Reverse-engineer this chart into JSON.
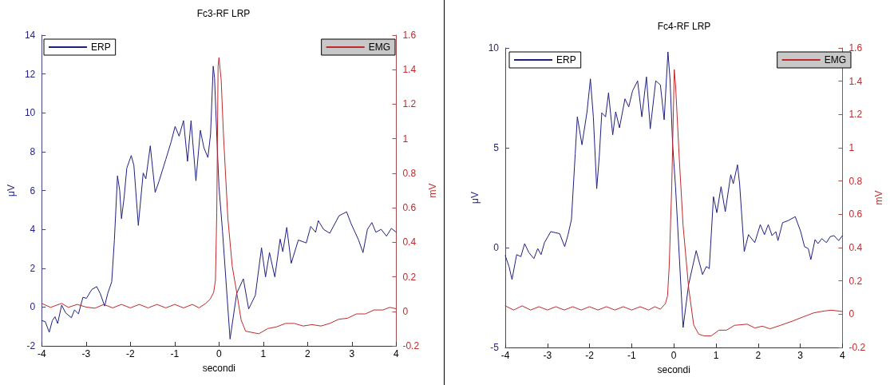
{
  "chart_data": [
    {
      "type": "line",
      "title": "Fc3-RF LRP",
      "xlabel": "secondi",
      "ylabel": "μV",
      "y2label": "mV",
      "legend": "top",
      "grid": false,
      "marker": "none",
      "line_style": "solid",
      "xlim": [
        -4,
        4
      ],
      "xticks": [
        -4,
        -3,
        -2,
        -1,
        0,
        1,
        2,
        3,
        4
      ],
      "ylim": [
        -2,
        14
      ],
      "yticks": [
        -2,
        0,
        2,
        4,
        6,
        8,
        10,
        12,
        14
      ],
      "y2lim": [
        -0.2,
        1.6
      ],
      "y2ticks": [
        -0.2,
        0,
        0.2,
        0.4,
        0.6,
        0.8,
        1,
        1.2,
        1.4,
        1.6
      ],
      "series": [
        {
          "name": "ERP",
          "color": "#1f1f80",
          "x": [
            -4,
            -3.92,
            -3.83,
            -3.76,
            -3.7,
            -3.64,
            -3.55,
            -3.46,
            -3.33,
            -3.26,
            -3.17,
            -3.07,
            -2.99,
            -2.87,
            -2.76,
            -2.68,
            -2.58,
            -2.51,
            -2.42,
            -2.36,
            -2.29,
            -2.24,
            -2.2,
            -2.14,
            -2.08,
            -1.98,
            -1.92,
            -1.82,
            -1.71,
            -1.65,
            -1.55,
            -1.44,
            -1.35,
            -1.2,
            -1.08,
            -0.99,
            -0.9,
            -0.8,
            -0.71,
            -0.63,
            -0.52,
            -0.42,
            -0.34,
            -0.25,
            -0.19,
            -0.13,
            -0.1,
            -0.04,
            0,
            0.08,
            0.25,
            0.4,
            0.55,
            0.67,
            0.82,
            0.96,
            1.05,
            1.14,
            1.26,
            1.38,
            1.44,
            1.53,
            1.63,
            1.79,
            1.97,
            2.07,
            2.18,
            2.24,
            2.36,
            2.5,
            2.71,
            2.88,
            2.98,
            3.15,
            3.25,
            3.35,
            3.45,
            3.54,
            3.66,
            3.78,
            3.89,
            4
          ],
          "values": [
            -0.7,
            -0.75,
            -1.3,
            -0.7,
            -0.5,
            -0.85,
            0.1,
            -0.3,
            -0.55,
            -0.15,
            -0.35,
            0.5,
            0.45,
            0.9,
            1.05,
            0.7,
            0.05,
            0.7,
            1.3,
            3.45,
            6.75,
            6.0,
            4.55,
            5.65,
            7.15,
            7.8,
            7.3,
            4.2,
            6.9,
            6.6,
            8.3,
            5.9,
            6.5,
            7.6,
            8.5,
            9.3,
            8.8,
            9.6,
            7.5,
            9.6,
            6.5,
            9.1,
            8.2,
            7.7,
            8.9,
            12.4,
            11.8,
            8.3,
            6.2,
            3.9,
            -1.65,
            0.7,
            1.45,
            -0.1,
            0.6,
            3.05,
            1.55,
            2.8,
            1.55,
            3.5,
            2.85,
            4.1,
            2.25,
            3.45,
            3.3,
            4.15,
            3.85,
            4.45,
            4.0,
            3.8,
            4.7,
            4.9,
            4.3,
            3.45,
            2.8,
            4.0,
            4.35,
            3.85,
            4.0,
            3.65,
            4.05,
            3.85
          ]
        },
        {
          "name": "EMG",
          "color": "#c0282b",
          "axis": "y2",
          "x": [
            -4,
            -3.8,
            -3.55,
            -3.4,
            -3.2,
            -3,
            -2.8,
            -2.6,
            -2.4,
            -2.2,
            -2,
            -1.8,
            -1.6,
            -1.4,
            -1.2,
            -1,
            -0.8,
            -0.6,
            -0.45,
            -0.3,
            -0.2,
            -0.12,
            -0.08,
            -0.05,
            -0.02,
            0,
            0.05,
            0.1,
            0.2,
            0.3,
            0.4,
            0.5,
            0.6,
            0.8,
            0.9,
            1.1,
            1.3,
            1.5,
            1.7,
            1.9,
            2.1,
            2.3,
            2.5,
            2.7,
            2.9,
            3.1,
            3.3,
            3.5,
            3.7,
            3.85,
            4
          ],
          "values": [
            0.046,
            0.023,
            0.046,
            0.023,
            0.04,
            0.025,
            0.018,
            0.04,
            0.02,
            0.04,
            0.02,
            0.04,
            0.02,
            0.04,
            0.02,
            0.04,
            0.02,
            0.04,
            0.02,
            0.046,
            0.07,
            0.11,
            0.18,
            0.57,
            1.42,
            1.47,
            1.34,
            1.03,
            0.54,
            0.26,
            0.11,
            -0.05,
            -0.115,
            -0.125,
            -0.13,
            -0.1,
            -0.09,
            -0.07,
            -0.07,
            -0.085,
            -0.077,
            -0.085,
            -0.07,
            -0.046,
            -0.04,
            -0.015,
            -0.015,
            0.008,
            0.008,
            0.023,
            0.015
          ]
        }
      ]
    },
    {
      "type": "line",
      "title": "Fc4-RF LRP",
      "xlabel": "secondi",
      "ylabel": "μV",
      "y2label": "mV",
      "legend": "top",
      "grid": false,
      "marker": "none",
      "line_style": "solid",
      "xlim": [
        -4,
        4
      ],
      "xticks": [
        -4,
        -3,
        -2,
        -1,
        0,
        1,
        2,
        3,
        4
      ],
      "ylim": [
        -5,
        10
      ],
      "yticks": [
        -5,
        0,
        5,
        10
      ],
      "y2lim": [
        -0.2,
        1.6
      ],
      "y2ticks": [
        -0.2,
        0,
        0.2,
        0.4,
        0.6,
        0.8,
        1,
        1.2,
        1.4,
        1.6
      ],
      "series": [
        {
          "name": "ERP",
          "color": "#1f1f80",
          "x": [
            -4,
            -3.91,
            -3.84,
            -3.73,
            -3.63,
            -3.54,
            -3.44,
            -3.32,
            -3.23,
            -3.15,
            -3.07,
            -2.92,
            -2.71,
            -2.59,
            -2.51,
            -2.43,
            -2.34,
            -2.29,
            -2.18,
            -2.06,
            -1.98,
            -1.91,
            -1.83,
            -1.77,
            -1.71,
            -1.62,
            -1.55,
            -1.45,
            -1.38,
            -1.29,
            -1.16,
            -1.07,
            -0.98,
            -0.86,
            -0.76,
            -0.65,
            -0.56,
            -0.43,
            -0.32,
            -0.23,
            -0.14,
            -0.09,
            -0.03,
            0.04,
            0.22,
            0.35,
            0.53,
            0.68,
            0.77,
            0.84,
            0.94,
            1.02,
            1.12,
            1.22,
            1.35,
            1.41,
            1.51,
            1.56,
            1.67,
            1.77,
            1.92,
            2.05,
            2.15,
            2.24,
            2.33,
            2.42,
            2.47,
            2.58,
            2.71,
            2.88,
            3.01,
            3.1,
            3.19,
            3.25,
            3.35,
            3.42,
            3.51,
            3.62,
            3.71,
            3.8,
            3.91,
            4
          ],
          "values": [
            -0.4,
            -0.95,
            -1.6,
            -0.35,
            -0.45,
            0.2,
            -0.25,
            -0.55,
            -0.05,
            -0.35,
            0.25,
            0.8,
            0.7,
            0.05,
            0.65,
            1.4,
            4.7,
            6.55,
            5.15,
            6.8,
            8.45,
            6.55,
            2.95,
            4.55,
            6.75,
            6.55,
            7.75,
            5.65,
            6.8,
            6.0,
            7.45,
            7.05,
            7.85,
            8.35,
            6.55,
            8.55,
            5.95,
            8.35,
            8.15,
            6.4,
            9.8,
            8.4,
            5.2,
            3.05,
            -4.0,
            -1.85,
            -0.15,
            -1.35,
            -0.95,
            -1.05,
            2.55,
            1.75,
            3.05,
            1.8,
            3.65,
            3.2,
            4.15,
            3.2,
            -0.2,
            0.65,
            0.25,
            1.15,
            0.65,
            1.15,
            0.6,
            0.8,
            0.35,
            1.25,
            1.35,
            1.55,
            0.8,
            0.05,
            -0.05,
            -0.6,
            0.4,
            0.2,
            0.45,
            0.25,
            0.55,
            0.6,
            0.35,
            0.6
          ]
        },
        {
          "name": "EMG",
          "color": "#c0282b",
          "axis": "y2",
          "x": [
            -4,
            -3.8,
            -3.6,
            -3.4,
            -3.2,
            -3,
            -2.8,
            -2.6,
            -2.4,
            -2.2,
            -2,
            -1.8,
            -1.6,
            -1.4,
            -1.2,
            -1,
            -0.8,
            -0.6,
            -0.45,
            -0.32,
            -0.2,
            -0.15,
            -0.11,
            -0.05,
            0.01,
            0.04,
            0.13,
            0.22,
            0.35,
            0.47,
            0.59,
            0.71,
            0.89,
            1.07,
            1.25,
            1.44,
            1.74,
            1.92,
            2.1,
            2.28,
            2.53,
            2.83,
            3.07,
            3.32,
            3.56,
            3.74,
            4
          ],
          "values": [
            0.05,
            0.025,
            0.05,
            0.025,
            0.045,
            0.025,
            0.045,
            0.025,
            0.045,
            0.025,
            0.045,
            0.025,
            0.045,
            0.025,
            0.045,
            0.025,
            0.045,
            0.025,
            0.045,
            0.03,
            0.064,
            0.11,
            0.29,
            0.77,
            1.47,
            1.38,
            0.93,
            0.53,
            0.16,
            -0.064,
            -0.12,
            -0.13,
            -0.13,
            -0.096,
            -0.096,
            -0.067,
            -0.06,
            -0.083,
            -0.072,
            -0.088,
            -0.067,
            -0.04,
            -0.016,
            0.008,
            0.019,
            0.024,
            0.016
          ]
        }
      ]
    }
  ]
}
